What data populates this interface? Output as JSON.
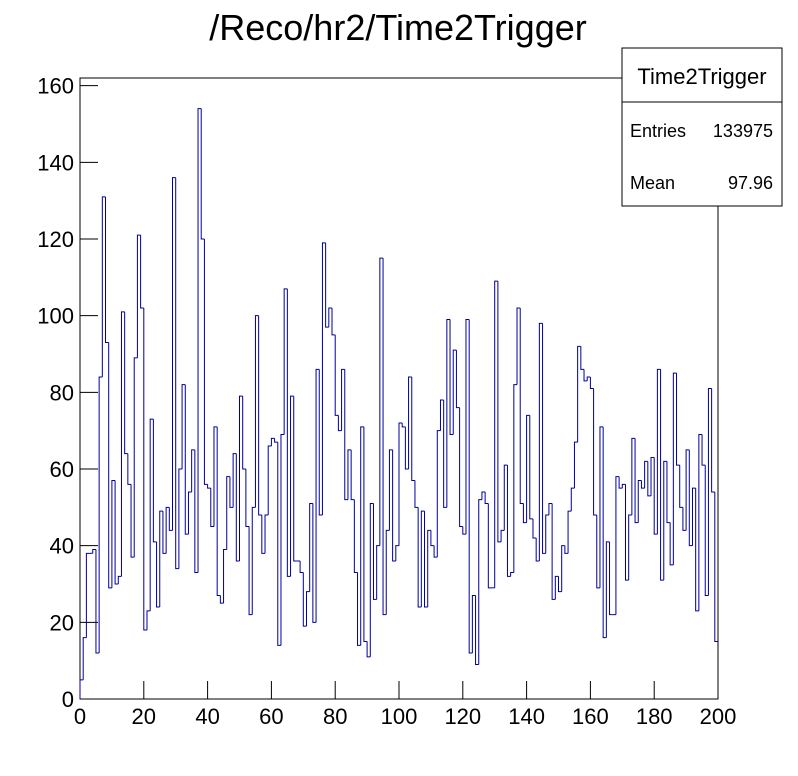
{
  "chart_data": {
    "type": "histogram",
    "title": "/Reco/hr2/Time2Trigger",
    "bins": [
      0,
      1,
      2,
      3,
      4,
      5,
      6,
      7,
      8,
      9,
      10,
      11,
      12,
      13,
      14,
      15,
      16,
      17,
      18,
      19,
      20,
      21,
      22,
      23,
      24,
      25,
      26,
      27,
      28,
      29,
      30,
      31,
      32,
      33,
      34,
      35,
      36,
      37,
      38,
      39,
      40,
      41,
      42,
      43,
      44,
      45,
      46,
      47,
      48,
      49,
      50,
      51,
      52,
      53,
      54,
      55,
      56,
      57,
      58,
      59,
      60,
      61,
      62,
      63,
      64,
      65,
      66,
      67,
      68,
      69,
      70,
      71,
      72,
      73,
      74,
      75,
      76,
      77,
      78,
      79,
      80,
      81,
      82,
      83,
      84,
      85,
      86,
      87,
      88,
      89,
      90,
      91,
      92,
      93,
      94,
      95,
      96,
      97,
      98,
      99,
      100,
      101,
      102,
      103,
      104,
      105,
      106,
      107,
      108,
      109,
      110,
      111,
      112,
      113,
      114,
      115,
      116,
      117,
      118,
      119,
      120,
      121,
      122,
      123,
      124,
      125,
      126,
      127,
      128,
      129,
      130,
      131,
      132,
      133,
      134,
      135,
      136,
      137,
      138,
      139,
      140,
      141,
      142,
      143,
      144,
      145,
      146,
      147,
      148,
      149,
      150,
      151,
      152,
      153,
      154,
      155,
      156,
      157,
      158,
      159,
      160,
      161,
      162,
      163,
      164,
      165,
      166,
      167,
      168,
      169,
      170,
      171,
      172,
      173,
      174,
      175,
      176,
      177,
      178,
      179,
      180,
      181,
      182,
      183,
      184,
      185,
      186,
      187,
      188,
      189,
      190,
      191,
      192,
      193,
      194,
      195,
      196,
      197,
      198,
      199,
      200
    ],
    "values": [
      5,
      16,
      38,
      38,
      39,
      12,
      84,
      131,
      93,
      29,
      57,
      30,
      32,
      101,
      64,
      56,
      37,
      89,
      121,
      102,
      18,
      23,
      73,
      41,
      24,
      49,
      38,
      50,
      44,
      136,
      34,
      60,
      82,
      43,
      54,
      65,
      33,
      154,
      120,
      56,
      55,
      45,
      71,
      27,
      25,
      39,
      58,
      50,
      64,
      36,
      79,
      60,
      45,
      22,
      50,
      100,
      48,
      38,
      48,
      66,
      68,
      67,
      14,
      69,
      107,
      32,
      79,
      36,
      36,
      33,
      19,
      28,
      51,
      20,
      86,
      48,
      119,
      97,
      102,
      95,
      74,
      70,
      86,
      52,
      65,
      52,
      33,
      14,
      71,
      15,
      11,
      51,
      26,
      40,
      115,
      22,
      44,
      65,
      36,
      40,
      72,
      71,
      60,
      84,
      57,
      50,
      24,
      49,
      24,
      44,
      40,
      37,
      70,
      78,
      50,
      99,
      69,
      91,
      76,
      45,
      43,
      99,
      12,
      27,
      9,
      52,
      54,
      51,
      29,
      29,
      109,
      41,
      44,
      61,
      32,
      33,
      82,
      102,
      51,
      46,
      74,
      47,
      42,
      36,
      98,
      38,
      48,
      51,
      26,
      32,
      28,
      40,
      38,
      49,
      55,
      67,
      92,
      86,
      83,
      84,
      81,
      48,
      29,
      71,
      16,
      41,
      22,
      22,
      58,
      55,
      56,
      31,
      48,
      68,
      46,
      57,
      55,
      62,
      53,
      63,
      43,
      86,
      31,
      62,
      46,
      35,
      85,
      61,
      50,
      44,
      65,
      40,
      55,
      23,
      69,
      61,
      27,
      81,
      54,
      15
    ],
    "color": "#000099",
    "xlim": [
      0,
      200
    ],
    "xticks": [
      0,
      20,
      40,
      60,
      80,
      100,
      120,
      140,
      160,
      180,
      200
    ],
    "ylim": [
      0,
      162
    ],
    "yticks": [
      0,
      20,
      40,
      60,
      80,
      100,
      120,
      140,
      160
    ],
    "stats": {
      "title": "Time2Trigger",
      "entries_label": "Entries",
      "entries": 133975,
      "mean_label": "Mean",
      "mean": 97.96
    }
  }
}
